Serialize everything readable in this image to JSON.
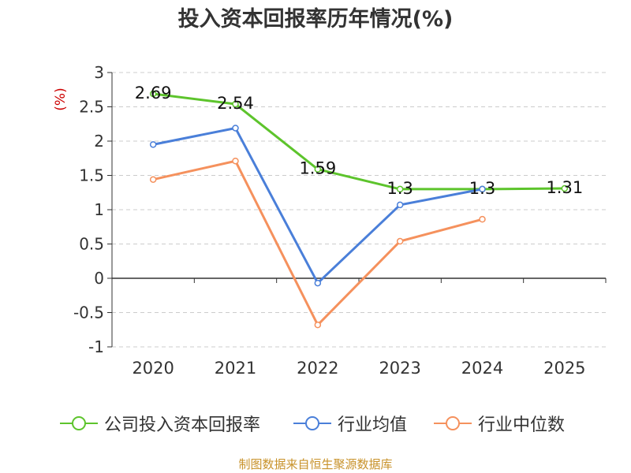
{
  "title": "投入资本回报率历年情况(%)",
  "source": "制图数据来自恒生聚源数据库",
  "colors": {
    "company": "#5dc42c",
    "industry_avg": "#4a7fd9",
    "industry_median": "#f5915d",
    "unit": "#cc0000",
    "grid": "#cccccc",
    "axis": "#333333"
  },
  "chart_data": {
    "type": "line",
    "title": "投入资本回报率历年情况(%)",
    "ylabel": "(%)",
    "xlabel": "",
    "categories": [
      "2020",
      "2021",
      "2022",
      "2023",
      "2024",
      "2025"
    ],
    "ylim": [
      -1,
      3
    ],
    "yticks": [
      "3",
      "2.5",
      "2",
      "1.5",
      "1",
      "0.5",
      "0",
      "-0.5",
      "-1"
    ],
    "grid": true,
    "legend_position": "bottom",
    "series": [
      {
        "name": "公司投入资本回报率",
        "color": "#5dc42c",
        "values": [
          2.69,
          2.54,
          1.59,
          1.3,
          1.3,
          1.31
        ],
        "data_labels": [
          "2.69",
          "2.54",
          "1.59",
          "1.3",
          "1.3",
          "1.31"
        ]
      },
      {
        "name": "行业均值",
        "color": "#4a7fd9",
        "values": [
          1.95,
          2.19,
          -0.07,
          1.07,
          1.3,
          null
        ]
      },
      {
        "name": "行业中位数",
        "color": "#f5915d",
        "values": [
          1.44,
          1.71,
          -0.68,
          0.54,
          0.86,
          null
        ]
      }
    ]
  }
}
